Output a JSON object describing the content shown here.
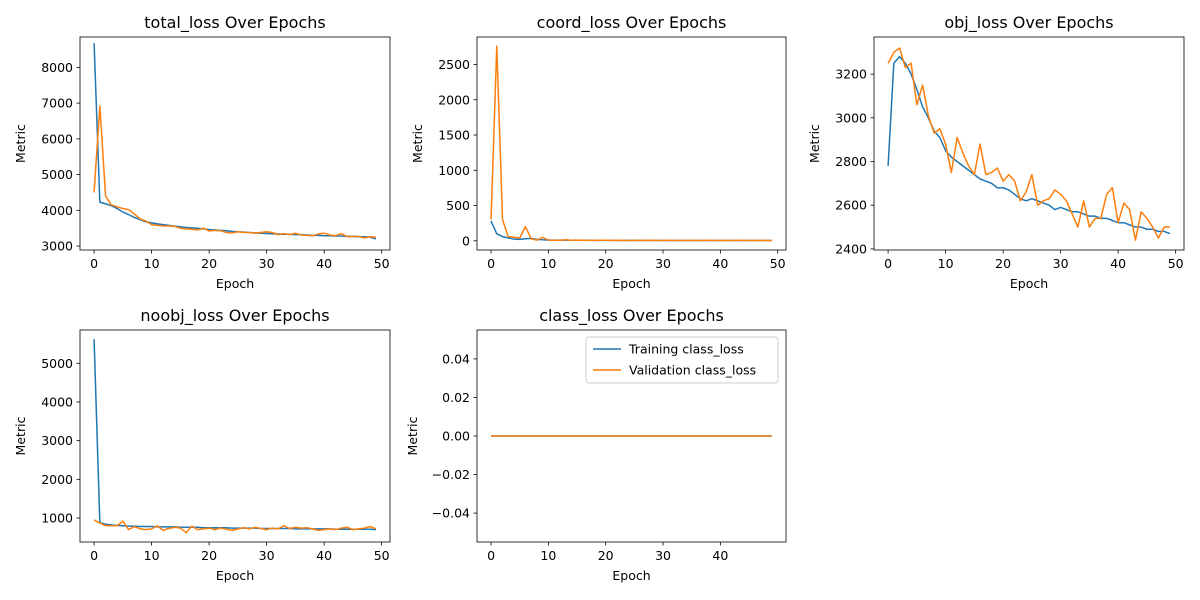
{
  "xlabel": "Epoch",
  "ylabel": "Metric",
  "colors": {
    "training": "#1f77b4",
    "validation": "#ff7f0e"
  },
  "chart_data": [
    {
      "type": "line",
      "title": "total_loss Over Epochs",
      "xlim": [
        -2.45,
        51.45
      ],
      "ylim": [
        2890,
        8850
      ],
      "xticks": [
        0,
        10,
        20,
        30,
        40,
        50
      ],
      "yticks": [
        3000,
        4000,
        5000,
        6000,
        7000,
        8000
      ],
      "series": [
        {
          "key": "training",
          "values": [
            8680,
            4230,
            4180,
            4130,
            4050,
            3950,
            3880,
            3800,
            3740,
            3680,
            3650,
            3620,
            3600,
            3580,
            3560,
            3540,
            3520,
            3510,
            3500,
            3480,
            3460,
            3450,
            3440,
            3430,
            3410,
            3400,
            3390,
            3380,
            3370,
            3360,
            3350,
            3340,
            3340,
            3330,
            3330,
            3320,
            3320,
            3310,
            3300,
            3300,
            3290,
            3290,
            3280,
            3280,
            3270,
            3270,
            3260,
            3260,
            3250,
            3200
          ]
        },
        {
          "key": "validation",
          "values": [
            4500,
            6920,
            4400,
            4150,
            4100,
            4050,
            4020,
            3900,
            3760,
            3700,
            3600,
            3580,
            3560,
            3560,
            3550,
            3500,
            3480,
            3470,
            3450,
            3500,
            3420,
            3440,
            3430,
            3380,
            3370,
            3400,
            3380,
            3380,
            3360,
            3380,
            3400,
            3380,
            3320,
            3350,
            3320,
            3360,
            3310,
            3300,
            3290,
            3340,
            3360,
            3310,
            3290,
            3350,
            3260,
            3270,
            3270,
            3230,
            3260,
            3250
          ]
        }
      ]
    },
    {
      "type": "line",
      "title": "coord_loss Over Epochs",
      "xlim": [
        -2.45,
        51.45
      ],
      "ylim": [
        -130,
        2890
      ],
      "xticks": [
        0,
        10,
        20,
        30,
        40,
        50
      ],
      "yticks": [
        0,
        500,
        1000,
        1500,
        2000,
        2500
      ],
      "series": [
        {
          "key": "training",
          "values": [
            280,
            100,
            60,
            40,
            25,
            20,
            30,
            35,
            20,
            15,
            12,
            10,
            10,
            9,
            9,
            8,
            8,
            8,
            7,
            7,
            7,
            7,
            6,
            6,
            6,
            6,
            6,
            6,
            6,
            6,
            5,
            5,
            5,
            5,
            5,
            5,
            5,
            5,
            5,
            5,
            5,
            5,
            5,
            5,
            5,
            5,
            5,
            5,
            5,
            5
          ]
        },
        {
          "key": "validation",
          "values": [
            300,
            2760,
            300,
            60,
            50,
            40,
            200,
            30,
            10,
            50,
            10,
            8,
            8,
            15,
            8,
            10,
            8,
            6,
            7,
            8,
            9,
            7,
            6,
            8,
            5,
            6,
            7,
            6,
            8,
            5,
            6,
            7,
            6,
            5,
            7,
            6,
            5,
            6,
            7,
            6,
            5,
            6,
            5,
            7,
            6,
            5,
            6,
            5,
            6,
            5
          ]
        }
      ]
    },
    {
      "type": "line",
      "title": "obj_loss Over Epochs",
      "xlim": [
        -2.45,
        51.45
      ],
      "ylim": [
        2395,
        3370
      ],
      "xticks": [
        0,
        10,
        20,
        30,
        40,
        50
      ],
      "yticks": [
        2400,
        2600,
        2800,
        3000,
        3200
      ],
      "series": [
        {
          "key": "training",
          "values": [
            2780,
            3250,
            3280,
            3250,
            3200,
            3130,
            3050,
            3000,
            2940,
            2910,
            2850,
            2820,
            2800,
            2780,
            2760,
            2740,
            2720,
            2710,
            2700,
            2680,
            2680,
            2670,
            2650,
            2630,
            2620,
            2630,
            2620,
            2610,
            2600,
            2580,
            2590,
            2580,
            2570,
            2570,
            2560,
            2550,
            2550,
            2540,
            2540,
            2530,
            2520,
            2520,
            2510,
            2500,
            2500,
            2490,
            2490,
            2480,
            2480,
            2470
          ]
        },
        {
          "key": "validation",
          "values": [
            3250,
            3300,
            3320,
            3230,
            3250,
            3060,
            3150,
            3010,
            2930,
            2950,
            2880,
            2750,
            2910,
            2840,
            2780,
            2740,
            2880,
            2740,
            2750,
            2770,
            2710,
            2740,
            2710,
            2620,
            2660,
            2740,
            2600,
            2620,
            2630,
            2670,
            2650,
            2620,
            2560,
            2500,
            2620,
            2500,
            2540,
            2540,
            2650,
            2680,
            2520,
            2610,
            2580,
            2440,
            2570,
            2540,
            2500,
            2450,
            2500,
            2500
          ]
        }
      ]
    },
    {
      "type": "line",
      "title": "noobj_loss Over Epochs",
      "xlim": [
        -2.45,
        51.45
      ],
      "ylim": [
        380,
        5860
      ],
      "xticks": [
        0,
        10,
        20,
        30,
        40,
        50
      ],
      "yticks": [
        1000,
        2000,
        3000,
        4000,
        5000
      ],
      "series": [
        {
          "key": "training",
          "values": [
            5620,
            880,
            840,
            820,
            810,
            800,
            790,
            790,
            780,
            780,
            780,
            770,
            770,
            770,
            770,
            760,
            760,
            760,
            760,
            750,
            750,
            750,
            750,
            750,
            740,
            740,
            740,
            740,
            740,
            730,
            730,
            730,
            730,
            730,
            730,
            720,
            720,
            720,
            720,
            720,
            720,
            720,
            710,
            710,
            710,
            710,
            710,
            710,
            710,
            700
          ]
        },
        {
          "key": "validation",
          "values": [
            950,
            870,
            800,
            800,
            800,
            920,
            700,
            780,
            720,
            700,
            720,
            800,
            680,
            730,
            760,
            740,
            620,
            790,
            700,
            720,
            740,
            700,
            740,
            710,
            680,
            720,
            750,
            720,
            760,
            730,
            700,
            740,
            720,
            800,
            730,
            760,
            740,
            750,
            720,
            680,
            700,
            720,
            700,
            740,
            760,
            700,
            720,
            740,
            780,
            720
          ]
        }
      ]
    },
    {
      "type": "line",
      "title": "class_loss Over Epochs",
      "xlim": [
        -2.45,
        51.45
      ],
      "ylim": [
        -0.055,
        0.055
      ],
      "xticks": [
        0,
        10,
        20,
        30,
        40
      ],
      "yticks": [
        -0.04,
        -0.02,
        0.0,
        0.02,
        0.04
      ],
      "ytick_decimals": 2,
      "legend": {
        "position": "upper-right",
        "entries": [
          "Training class_loss",
          "Validation class_loss"
        ]
      },
      "series": [
        {
          "key": "training",
          "values": [
            0,
            0,
            0,
            0,
            0,
            0,
            0,
            0,
            0,
            0,
            0,
            0,
            0,
            0,
            0,
            0,
            0,
            0,
            0,
            0,
            0,
            0,
            0,
            0,
            0,
            0,
            0,
            0,
            0,
            0,
            0,
            0,
            0,
            0,
            0,
            0,
            0,
            0,
            0,
            0,
            0,
            0,
            0,
            0,
            0,
            0,
            0,
            0,
            0,
            0
          ]
        },
        {
          "key": "validation",
          "values": [
            0,
            0,
            0,
            0,
            0,
            0,
            0,
            0,
            0,
            0,
            0,
            0,
            0,
            0,
            0,
            0,
            0,
            0,
            0,
            0,
            0,
            0,
            0,
            0,
            0,
            0,
            0,
            0,
            0,
            0,
            0,
            0,
            0,
            0,
            0,
            0,
            0,
            0,
            0,
            0,
            0,
            0,
            0,
            0,
            0,
            0,
            0,
            0,
            0,
            0
          ]
        }
      ]
    }
  ]
}
